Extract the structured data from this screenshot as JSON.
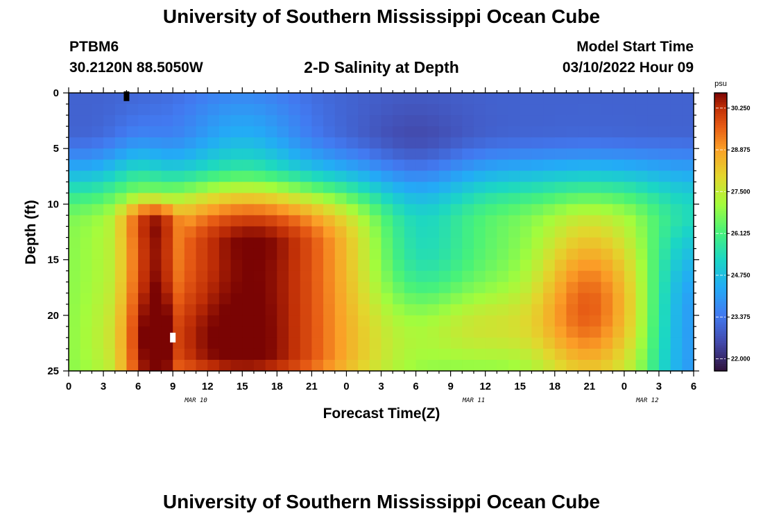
{
  "page": {
    "title": "University of Southern Mississippi Ocean Cube",
    "station_id": "PTBM6",
    "station_coords": "30.2120N  88.5050W",
    "plot_title": "2-D Salinity at Depth",
    "model_start_label": "Model Start Time",
    "model_start_value": "03/10/2022 Hour 09",
    "footer_title": "University of Southern Mississippi Ocean Cube"
  },
  "chart_data": {
    "type": "heatmap",
    "title": "2-D Salinity at Depth",
    "xlabel": "Forecast Time(Z)",
    "ylabel": "Depth (ft)",
    "ylim": [
      0,
      25
    ],
    "y_inverted": true,
    "x_hours_range": [
      0,
      54
    ],
    "x_ticks": [
      "0",
      "3",
      "6",
      "9",
      "12",
      "15",
      "18",
      "21",
      "0",
      "3",
      "6",
      "9",
      "12",
      "15",
      "18",
      "21",
      "0",
      "3",
      "6"
    ],
    "x_date_labels": [
      {
        "label": "MAR 10",
        "hour": 11
      },
      {
        "label": "MAR 11",
        "hour": 35
      },
      {
        "label": "MAR 12",
        "hour": 50
      }
    ],
    "y_ticks": [
      "0",
      "5",
      "10",
      "15",
      "20",
      "25"
    ],
    "colorbar": {
      "units": "psu",
      "range": [
        21.6,
        30.75
      ],
      "ticks": [
        "30.250",
        "28.875",
        "27.500",
        "26.125",
        "24.750",
        "23.375",
        "22.000"
      ]
    },
    "grid_cols": 54,
    "grid_rows": 25,
    "features": [
      {
        "name": "fresh surface layer",
        "hours": [
          0,
          54
        ],
        "depth_ft": [
          0,
          6
        ],
        "psu": 23.0
      },
      {
        "name": "high salinity core A",
        "hours": [
          4,
          24
        ],
        "depth_ft": [
          10,
          25
        ],
        "psu": 30.5
      },
      {
        "name": "high salinity core B",
        "hours": [
          40,
          49
        ],
        "depth_ft": [
          13,
          23
        ],
        "psu": 29.5
      },
      {
        "name": "mid-depth lower salinity band",
        "hours": [
          25,
          40
        ],
        "depth_ft": [
          8,
          19
        ],
        "psu": 26.5
      }
    ],
    "markers": [
      {
        "name": "top marker",
        "hour": 5,
        "depth_ft": 0.3,
        "color": "#000000"
      },
      {
        "name": "bottom marker",
        "hour": 9,
        "depth_ft": 22,
        "color": "#ffffff"
      }
    ]
  }
}
